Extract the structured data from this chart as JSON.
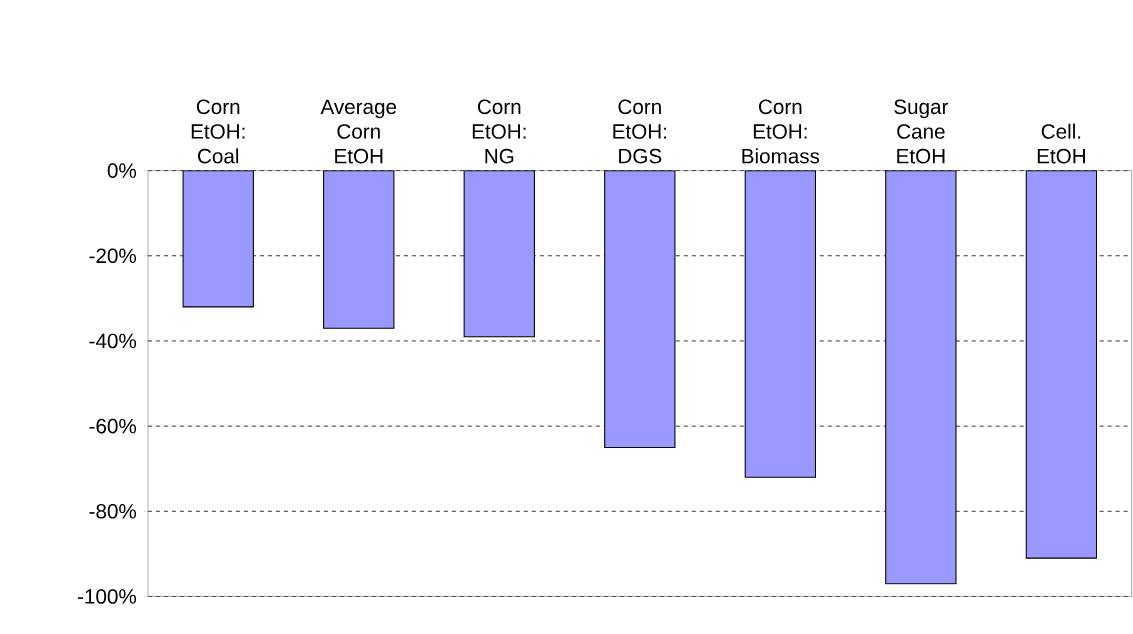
{
  "chart_data": {
    "type": "bar",
    "categories": [
      "Corn EtOH: Coal",
      "Average Corn EtOH",
      "Corn EtOH: NG",
      "Corn EtOH: DGS",
      "Corn EtOH: Biomass",
      "Sugar Cane EtOH",
      "Cell. EtOH"
    ],
    "values": [
      -32,
      -37,
      -39,
      -65,
      -72,
      -97,
      -91
    ],
    "color": "#9999ff",
    "ylim": [
      -100,
      0
    ],
    "yticks": [
      {
        "value": 0,
        "label": "0%"
      },
      {
        "value": -20,
        "label": "-20%"
      },
      {
        "value": -40,
        "label": "-40%"
      },
      {
        "value": -60,
        "label": "-60%"
      },
      {
        "value": -80,
        "label": "-80%"
      },
      {
        "value": -100,
        "label": "-100%"
      }
    ],
    "grid": "y"
  }
}
